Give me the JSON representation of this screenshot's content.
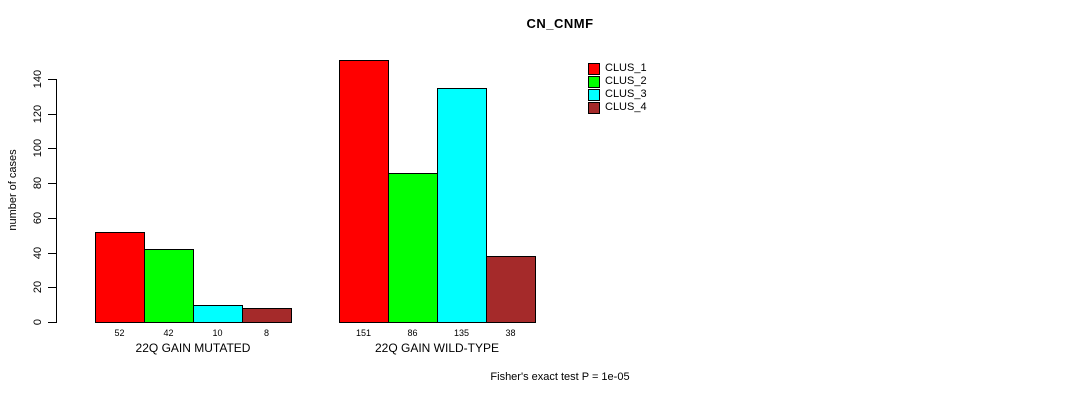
{
  "chart_data": {
    "type": "bar",
    "title": "CN_CNMF",
    "ylabel": "number of cases",
    "ylim": [
      0,
      140
    ],
    "yticks": [
      0,
      20,
      40,
      60,
      80,
      100,
      120,
      140
    ],
    "grid": false,
    "legend_position": "top-right",
    "series": [
      {
        "name": "CLUS_1",
        "color": "#FF0000"
      },
      {
        "name": "CLUS_2",
        "color": "#00FF00"
      },
      {
        "name": "CLUS_3",
        "color": "#00FFFF"
      },
      {
        "name": "CLUS_4",
        "color": "#A52A2A"
      }
    ],
    "groups": [
      {
        "label": "22Q GAIN MUTATED",
        "values": [
          52,
          42,
          10,
          8
        ]
      },
      {
        "label": "22Q GAIN WILD-TYPE",
        "values": [
          151,
          86,
          135,
          38
        ]
      }
    ],
    "annotation": "Fisher's exact test P = 1e-05"
  }
}
